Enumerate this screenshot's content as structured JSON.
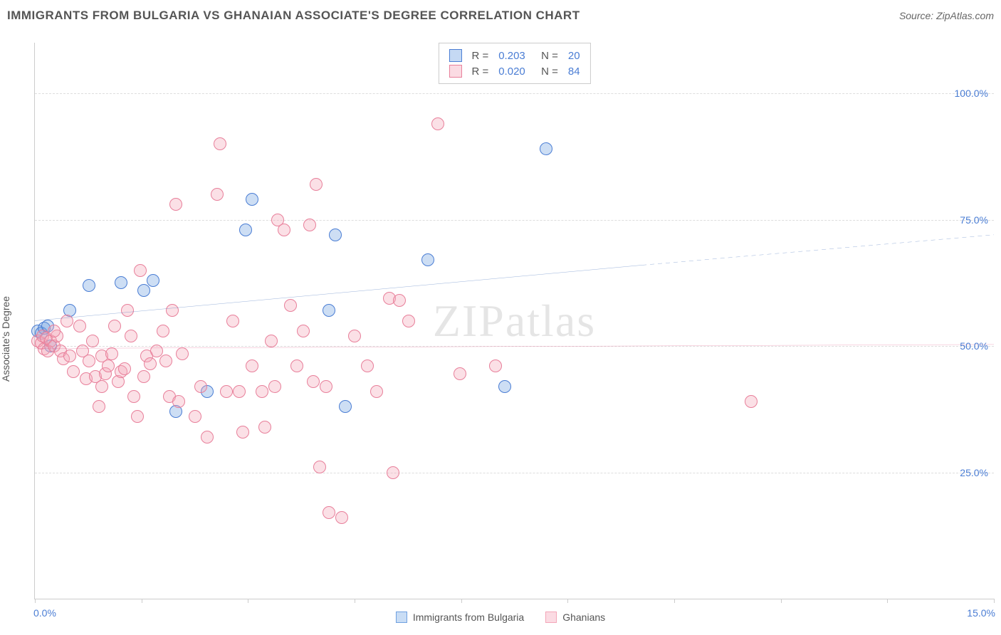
{
  "title": "IMMIGRANTS FROM BULGARIA VS GHANAIAN ASSOCIATE'S DEGREE CORRELATION CHART",
  "source_label": "Source: ZipAtlas.com",
  "watermark": "ZIPatlas",
  "y_axis_label": "Associate's Degree",
  "chart": {
    "type": "scatter",
    "background_color": "#ffffff",
    "grid_color": "#dddddd",
    "axis_color": "#cccccc",
    "tick_label_color": "#4a7dd4",
    "text_color": "#555555",
    "xlim": [
      0,
      15
    ],
    "ylim": [
      0,
      110
    ],
    "x_tick_positions": [
      0,
      1.67,
      3.33,
      5.0,
      6.67,
      8.33,
      10.0,
      11.67,
      13.33,
      15.0
    ],
    "x_min_label": "0.0%",
    "x_max_label": "15.0%",
    "y_gridlines": [
      {
        "value": 25,
        "label": "25.0%"
      },
      {
        "value": 50,
        "label": "50.0%"
      },
      {
        "value": 75,
        "label": "75.0%"
      },
      {
        "value": 100,
        "label": "100.0%"
      }
    ],
    "marker_radius": 9,
    "marker_fill_opacity": 0.35,
    "marker_stroke_width": 1.5,
    "series": [
      {
        "name": "Immigrants from Bulgaria",
        "color": "#6fa0e0",
        "stroke": "#4a7dd4",
        "trend_color": "#2a5db0",
        "trend_width": 2,
        "stats": {
          "R": "0.203",
          "N": "20"
        },
        "trend": {
          "y_at_xmin": 55,
          "y_at_solid_end": 66,
          "solid_end_x": 9.5,
          "y_at_xmax": 72
        },
        "points": [
          [
            0.05,
            53
          ],
          [
            0.1,
            52.5
          ],
          [
            0.15,
            53.5
          ],
          [
            0.2,
            54
          ],
          [
            0.25,
            50
          ],
          [
            0.55,
            57
          ],
          [
            0.85,
            62
          ],
          [
            1.35,
            62.5
          ],
          [
            1.7,
            61
          ],
          [
            1.85,
            63
          ],
          [
            2.2,
            37
          ],
          [
            2.7,
            41
          ],
          [
            3.4,
            79
          ],
          [
            3.3,
            73
          ],
          [
            4.7,
            72
          ],
          [
            4.6,
            57
          ],
          [
            4.85,
            38
          ],
          [
            6.15,
            67
          ],
          [
            7.35,
            42
          ],
          [
            8.0,
            89
          ]
        ]
      },
      {
        "name": "Ghanians",
        "color": "#f4a6b8",
        "stroke": "#e87f9a",
        "trend_color": "#e05080",
        "trend_width": 2,
        "stats": {
          "R": "0.020",
          "N": "84"
        },
        "trend": {
          "y_at_xmin": 49.5,
          "y_at_solid_end": 50.3,
          "solid_end_x": 15,
          "y_at_xmax": 50.3
        },
        "points": [
          [
            0.05,
            51
          ],
          [
            0.1,
            50.5
          ],
          [
            0.15,
            49.5
          ],
          [
            0.12,
            52
          ],
          [
            0.18,
            51.5
          ],
          [
            0.2,
            49
          ],
          [
            0.25,
            51
          ],
          [
            0.3,
            50
          ],
          [
            0.35,
            52
          ],
          [
            0.4,
            49
          ],
          [
            0.3,
            53
          ],
          [
            0.45,
            47.5
          ],
          [
            0.5,
            55
          ],
          [
            0.55,
            48
          ],
          [
            0.6,
            45
          ],
          [
            0.7,
            54
          ],
          [
            0.75,
            49
          ],
          [
            0.8,
            43.5
          ],
          [
            0.85,
            47
          ],
          [
            0.9,
            51
          ],
          [
            0.95,
            44
          ],
          [
            1.0,
            38
          ],
          [
            1.05,
            48
          ],
          [
            1.1,
            44.5
          ],
          [
            1.05,
            42
          ],
          [
            1.15,
            46
          ],
          [
            1.2,
            48.5
          ],
          [
            1.25,
            54
          ],
          [
            1.3,
            43
          ],
          [
            1.35,
            45
          ],
          [
            1.4,
            45.5
          ],
          [
            1.45,
            57
          ],
          [
            1.5,
            52
          ],
          [
            1.55,
            40
          ],
          [
            1.6,
            36
          ],
          [
            1.65,
            65
          ],
          [
            1.7,
            44
          ],
          [
            1.75,
            48
          ],
          [
            1.8,
            46.5
          ],
          [
            1.9,
            49
          ],
          [
            2.0,
            53
          ],
          [
            2.05,
            47
          ],
          [
            2.1,
            40
          ],
          [
            2.15,
            57
          ],
          [
            2.2,
            78
          ],
          [
            2.25,
            39
          ],
          [
            2.3,
            48.5
          ],
          [
            2.5,
            36
          ],
          [
            2.6,
            42
          ],
          [
            2.7,
            32
          ],
          [
            2.85,
            80
          ],
          [
            2.9,
            90
          ],
          [
            3.0,
            41
          ],
          [
            3.1,
            55
          ],
          [
            3.2,
            41
          ],
          [
            3.25,
            33
          ],
          [
            3.4,
            46
          ],
          [
            3.55,
            41
          ],
          [
            3.6,
            34
          ],
          [
            3.7,
            51
          ],
          [
            3.75,
            42
          ],
          [
            3.8,
            75
          ],
          [
            3.9,
            73
          ],
          [
            4.0,
            58
          ],
          [
            4.1,
            46
          ],
          [
            4.2,
            53
          ],
          [
            4.3,
            74
          ],
          [
            4.35,
            43
          ],
          [
            4.4,
            82
          ],
          [
            4.45,
            26
          ],
          [
            4.55,
            42
          ],
          [
            4.6,
            17
          ],
          [
            4.8,
            16
          ],
          [
            5.0,
            52
          ],
          [
            5.2,
            46
          ],
          [
            5.35,
            41
          ],
          [
            5.55,
            59.5
          ],
          [
            5.6,
            25
          ],
          [
            5.7,
            59
          ],
          [
            5.85,
            55
          ],
          [
            6.3,
            94
          ],
          [
            6.65,
            44.5
          ],
          [
            7.2,
            46
          ],
          [
            11.2,
            39
          ]
        ]
      }
    ]
  },
  "bottom_legend": [
    {
      "label": "Immigrants from Bulgaria",
      "fill": "#c9ddf5",
      "stroke": "#6fa0e0"
    },
    {
      "label": "Ghanians",
      "fill": "#fbdbe3",
      "stroke": "#f4a6b8"
    }
  ]
}
